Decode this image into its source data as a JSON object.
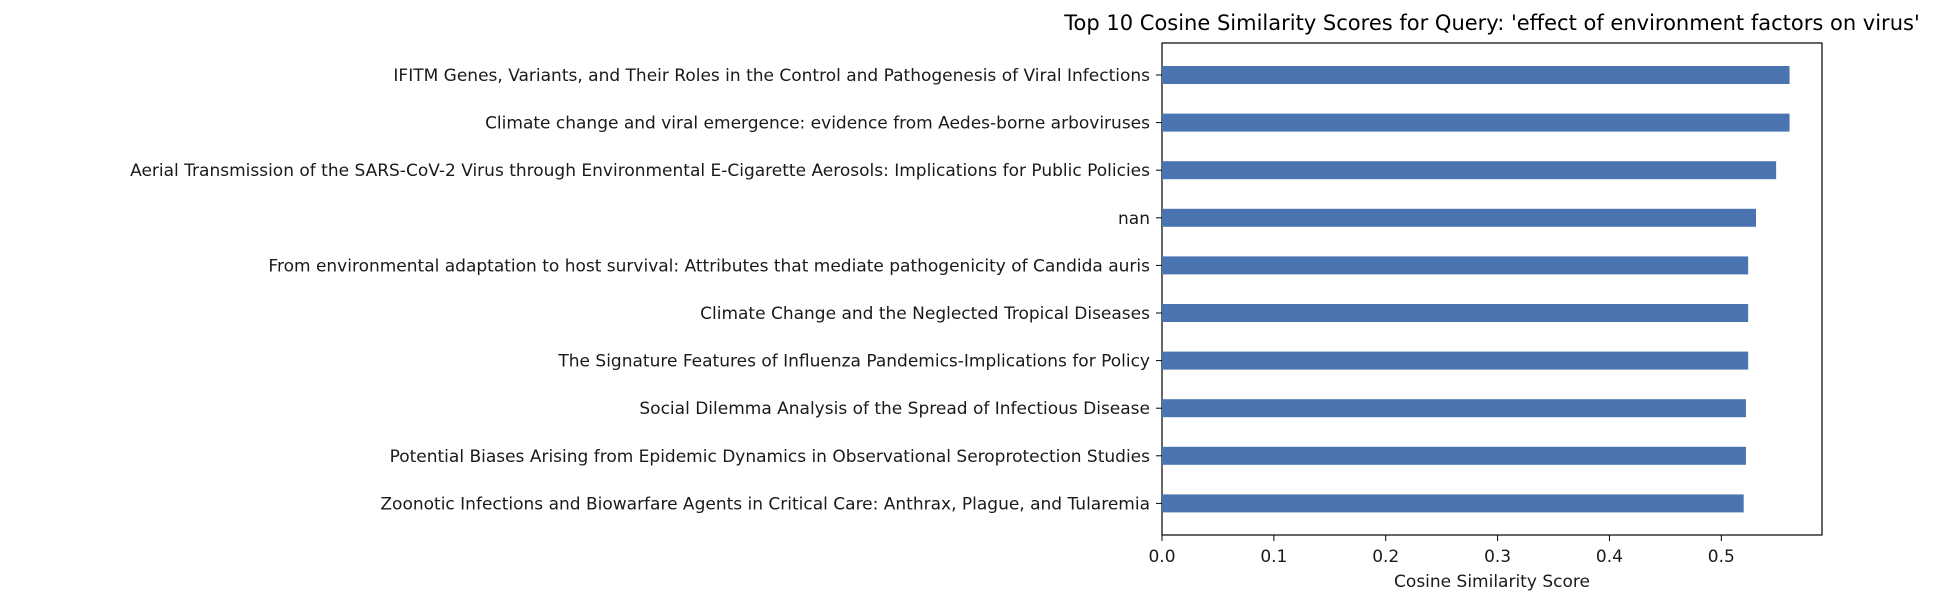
{
  "chart_data": {
    "type": "bar",
    "orientation": "horizontal",
    "title": "Top 10 Cosine Similarity Scores for Query: 'effect of environment factors on virus'",
    "xlabel": "Cosine Similarity Score",
    "ylabel": "",
    "xlim": [
      0,
      0.59
    ],
    "xticks": [
      "0.0",
      "0.1",
      "0.2",
      "0.3",
      "0.4",
      "0.5"
    ],
    "grid": false,
    "bar_color": "#4a74b0",
    "categories": [
      "IFITM Genes, Variants, and Their Roles in the Control and Pathogenesis of Viral Infections",
      "Climate change and viral emergence: evidence from Aedes-borne arboviruses",
      "Aerial Transmission of the SARS-CoV-2 Virus through Environmental E-Cigarette Aerosols: Implications for Public Policies",
      "nan",
      "From environmental adaptation to host survival: Attributes that mediate pathogenicity of Candida auris",
      "Climate Change and the Neglected Tropical Diseases",
      "The Signature Features of Influenza Pandemics-Implications for Policy",
      "Social Dilemma Analysis of the Spread of Infectious Disease",
      "Potential Biases Arising from Epidemic Dynamics in Observational Seroprotection Studies",
      "Zoonotic Infections and Biowarfare Agents in Critical Care: Anthrax, Plague, and Tularemia"
    ],
    "values": [
      0.561,
      0.561,
      0.549,
      0.531,
      0.524,
      0.524,
      0.524,
      0.522,
      0.522,
      0.52
    ]
  }
}
